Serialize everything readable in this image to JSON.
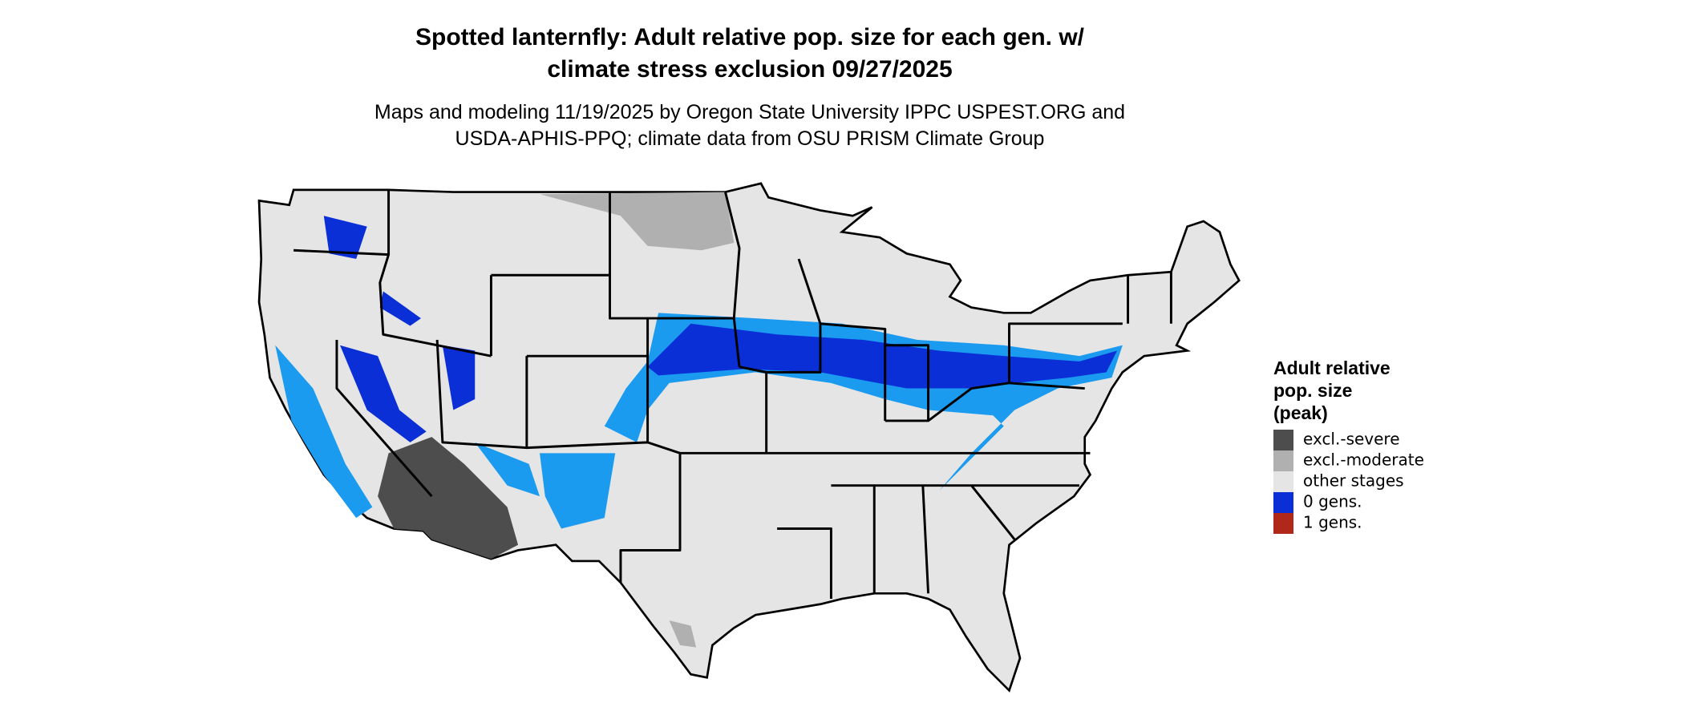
{
  "header": {
    "title_lines": [
      "Spotted lanternfly: Adult relative pop. size for each gen. w/",
      "climate stress exclusion 09/27/2025"
    ],
    "subtitle_lines": [
      "Maps and modeling 11/19/2025 by Oregon State University IPPC USPEST.ORG and",
      "USDA-APHIS-PPQ; climate data from OSU PRISM Climate Group"
    ]
  },
  "legend": {
    "title_lines": [
      "Adult relative",
      "pop. size",
      "(peak)"
    ],
    "items": [
      {
        "label": "excl.-severe",
        "color": "#4d4d4d"
      },
      {
        "label": "excl.-moderate",
        "color": "#b0b0b0"
      },
      {
        "label": "other stages",
        "color": "#e5e5e5"
      },
      {
        "label": "0 gens.",
        "color": "#0a2fd6"
      },
      {
        "label": "1 gens.",
        "color": "#b0281a"
      }
    ]
  }
}
